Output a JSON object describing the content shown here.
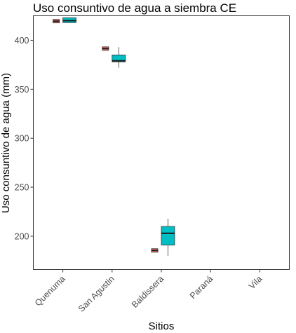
{
  "chart_data": {
    "type": "boxplot",
    "title": "Uso consuntivo de agua a siembra CE",
    "xlabel": "Sitios",
    "ylabel": "Uso consuntivo de agua (mm)",
    "categories": [
      "Quenuma",
      "San Agustin",
      "Baldissera",
      "Paraná",
      "Vila"
    ],
    "ylim": [
      166,
      425
    ],
    "yticks": [
      200,
      250,
      300,
      350,
      400
    ],
    "grid": false,
    "legend": "none",
    "series": [
      {
        "color": "#F8766D",
        "boxes": [
          {
            "category": "Quenuma",
            "min": 419,
            "q1": 419,
            "median": 419.5,
            "q3": 420,
            "max": 420
          },
          {
            "category": "San Agustin",
            "min": 391,
            "q1": 391,
            "median": 391.5,
            "q3": 392,
            "max": 392
          },
          {
            "category": "Baldissera",
            "min": 185,
            "q1": 185,
            "median": 185.5,
            "q3": 186,
            "max": 186
          }
        ]
      },
      {
        "color": "#00BFC4",
        "boxes": [
          {
            "category": "Quenuma",
            "min": 418,
            "q1": 418,
            "median": 420,
            "q3": 423,
            "max": 423
          },
          {
            "category": "San Agustin",
            "min": 372,
            "q1": 378,
            "median": 379,
            "q3": 385,
            "max": 393
          },
          {
            "category": "Baldissera",
            "min": 180,
            "q1": 191,
            "median": 203,
            "q3": 210,
            "max": 218
          }
        ]
      }
    ]
  }
}
